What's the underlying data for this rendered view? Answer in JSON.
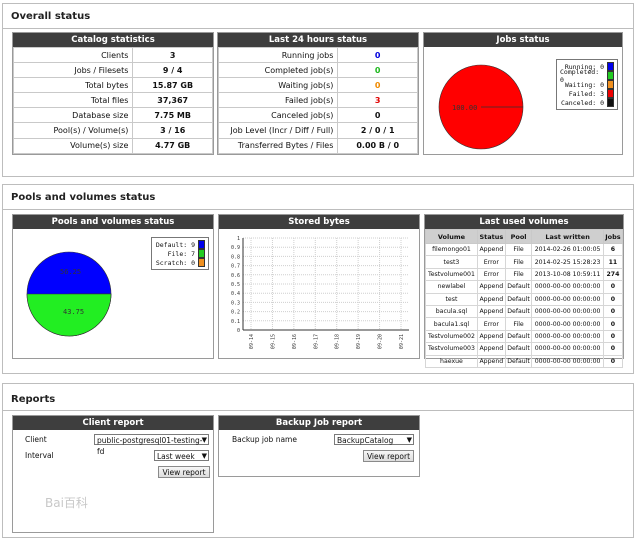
{
  "overall": {
    "title": "Overall status",
    "catalog": {
      "title": "Catalog statistics",
      "rows": [
        {
          "label": "Clients",
          "value": "3"
        },
        {
          "label": "Jobs / Filesets",
          "value": "9 / 4"
        },
        {
          "label": "Total bytes",
          "value": "15.87 GB"
        },
        {
          "label": "Total files",
          "value": "37,367"
        },
        {
          "label": "Database size",
          "value": "7.75 MB"
        },
        {
          "label": "Pool(s) / Volume(s)",
          "value": "3 / 16"
        },
        {
          "label": "Volume(s) size",
          "value": "4.77 GB"
        }
      ]
    },
    "last24": {
      "title": "Last 24 hours status",
      "rows": [
        {
          "label": "Running jobs",
          "value": "0"
        },
        {
          "label": "Completed job(s)",
          "value": "0"
        },
        {
          "label": "Waiting job(s)",
          "value": "0"
        },
        {
          "label": "Failed job(s)",
          "value": "3"
        },
        {
          "label": "Canceled job(s)",
          "value": "0"
        },
        {
          "label": "Job Level (Incr / Diff / Full)",
          "value": "2 / 0 / 1"
        },
        {
          "label": "Transferred Bytes / Files",
          "value": "0.00 B / 0"
        }
      ]
    },
    "jobs_status": {
      "title": "Jobs status",
      "pie_label": "100.00",
      "legend": [
        {
          "label": "Running: 0",
          "color": "#0000ee"
        },
        {
          "label": "Completed: 0",
          "color": "#22cc22"
        },
        {
          "label": "Waiting: 0",
          "color": "#f09020"
        },
        {
          "label": "Failed: 3",
          "color": "#ee0000"
        },
        {
          "label": "Canceled: 0",
          "color": "#111111"
        }
      ]
    }
  },
  "pools": {
    "title": "Pools and volumes status",
    "pie": {
      "title": "Pools and volumes status",
      "label_a": "56.25",
      "label_b": "43.75",
      "legend": [
        {
          "label": "Default: 9",
          "color": "#0000ee"
        },
        {
          "label": "File: 7",
          "color": "#22cc22"
        },
        {
          "label": "Scratch: 0",
          "color": "#f09020"
        }
      ]
    },
    "stored": {
      "title": "Stored bytes",
      "y_ticks": [
        "1",
        "0.9",
        "0.8",
        "0.7",
        "0.6",
        "0.5",
        "0.4",
        "0.3",
        "0.2",
        "0.1",
        "0"
      ],
      "x_ticks": [
        "09-14",
        "09-15",
        "09-16",
        "09-17",
        "09-18",
        "09-19",
        "09-20",
        "09-21"
      ]
    },
    "last_used": {
      "title": "Last used volumes",
      "columns": [
        "Volume",
        "Status",
        "Pool",
        "Last written",
        "Jobs"
      ],
      "rows": [
        [
          "filemongo01",
          "Append",
          "File",
          "2014-02-26 01:00:05",
          "6"
        ],
        [
          "test3",
          "Error",
          "File",
          "2014-02-25 15:28:23",
          "11"
        ],
        [
          "Testvolume001",
          "Error",
          "File",
          "2013-10-08 10:59:11",
          "274"
        ],
        [
          "newlabel",
          "Append",
          "Default",
          "0000-00-00 00:00:00",
          "0"
        ],
        [
          "test",
          "Append",
          "Default",
          "0000-00-00 00:00:00",
          "0"
        ],
        [
          "bacula.sql",
          "Append",
          "Default",
          "0000-00-00 00:00:00",
          "0"
        ],
        [
          "bacula1.sql",
          "Error",
          "File",
          "0000-00-00 00:00:00",
          "0"
        ],
        [
          "Testvolume002",
          "Append",
          "Default",
          "0000-00-00 00:00:00",
          "0"
        ],
        [
          "Testvolume003",
          "Append",
          "Default",
          "0000-00-00 00:00:00",
          "0"
        ],
        [
          "haexue",
          "Append",
          "Default",
          "0000-00-00 00:00:00",
          "0"
        ]
      ]
    }
  },
  "reports": {
    "title": "Reports",
    "client": {
      "title": "Client report",
      "client_label": "Client",
      "client_value": "public-postgresql01-testing-fd",
      "interval_label": "Interval",
      "interval_value": "Last week",
      "button": "View report"
    },
    "backup": {
      "title": "Backup Job report",
      "job_label": "Backup job name",
      "job_value": "BackupCatalog",
      "button": "View report"
    }
  }
}
